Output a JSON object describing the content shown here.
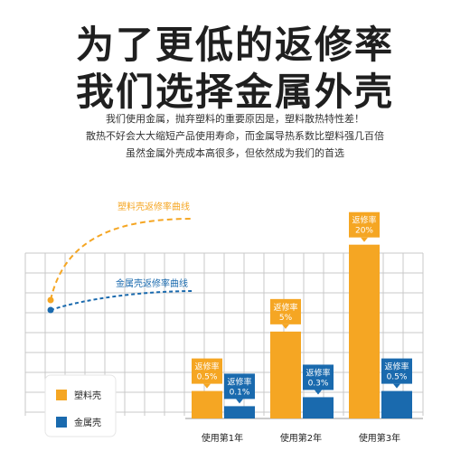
{
  "header": {
    "title_line1": "为了更低的返修率",
    "title_line2": "我们选择金属外壳",
    "desc_line1": "我们使用金属，抛弃塑料的重要原因是，塑料散热特性差！",
    "desc_line2": "散热不好会大大缩短产品使用寿命，而金属导热系数比塑料强几百倍",
    "desc_line3": "虽然金属外壳成本高很多，但依然成为我们的首选"
  },
  "chart_data": {
    "type": "bar",
    "categories": [
      "使用第1年",
      "使用第2年",
      "使用第3年"
    ],
    "series": [
      {
        "name": "塑料壳",
        "color": "#f5a623",
        "values": [
          0.5,
          5,
          20
        ],
        "labels": [
          "返修率\n0.5%",
          "返修率\n5%",
          "返修率\n20%"
        ]
      },
      {
        "name": "金属壳",
        "color": "#1a6aae",
        "values": [
          0.1,
          0.3,
          0.5
        ],
        "labels": [
          "返修率\n0.1%",
          "返修率\n0.3%",
          "返修率\n0.5%"
        ]
      }
    ],
    "annotations": [
      {
        "text": "塑料壳返修率曲线",
        "color": "#f5a623"
      },
      {
        "text": "金属壳返修率曲线",
        "color": "#1a6aae"
      }
    ],
    "legend": [
      {
        "name": "塑料壳",
        "color": "#f5a623"
      },
      {
        "name": "金属壳",
        "color": "#1a6aae"
      }
    ],
    "legend_position": "bottom-left",
    "grid": true,
    "value_unit": "%",
    "scale_note": "bar heights not linear"
  }
}
